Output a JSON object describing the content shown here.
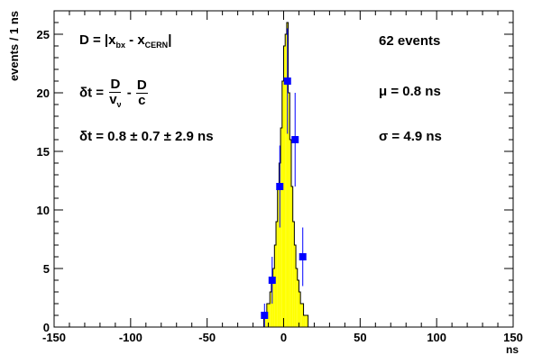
{
  "chart_data": {
    "type": "bar",
    "xlabel": "ns",
    "ylabel": "events / 1 ns",
    "xlim": [
      -150,
      150
    ],
    "ylim": [
      0,
      27
    ],
    "x_ticks": [
      -150,
      -100,
      -50,
      0,
      50,
      100,
      150
    ],
    "y_ticks": [
      0,
      5,
      10,
      15,
      20,
      25
    ],
    "grid": false,
    "legend": "none",
    "histogram": {
      "color": "#ffff00",
      "edge_color": "#000000",
      "bin_width": 1,
      "bins": [
        {
          "x": -14,
          "y": 0
        },
        {
          "x": -13,
          "y": 1
        },
        {
          "x": -12,
          "y": 1
        },
        {
          "x": -11,
          "y": 2
        },
        {
          "x": -10,
          "y": 2
        },
        {
          "x": -9,
          "y": 3
        },
        {
          "x": -8,
          "y": 4
        },
        {
          "x": -7,
          "y": 5
        },
        {
          "x": -6,
          "y": 7
        },
        {
          "x": -5,
          "y": 9
        },
        {
          "x": -4,
          "y": 12
        },
        {
          "x": -3,
          "y": 14
        },
        {
          "x": -2,
          "y": 17
        },
        {
          "x": -1,
          "y": 21
        },
        {
          "x": 0,
          "y": 24
        },
        {
          "x": 1,
          "y": 25
        },
        {
          "x": 2,
          "y": 26
        },
        {
          "x": 3,
          "y": 20
        },
        {
          "x": 4,
          "y": 16
        },
        {
          "x": 5,
          "y": 12
        },
        {
          "x": 6,
          "y": 9
        },
        {
          "x": 7,
          "y": 7
        },
        {
          "x": 8,
          "y": 5
        },
        {
          "x": 9,
          "y": 4
        },
        {
          "x": 10,
          "y": 3
        },
        {
          "x": 11,
          "y": 2
        },
        {
          "x": 12,
          "y": 2
        },
        {
          "x": 13,
          "y": 1
        },
        {
          "x": 14,
          "y": 1
        },
        {
          "x": 15,
          "y": 1
        },
        {
          "x": 16,
          "y": 0
        }
      ]
    },
    "points": {
      "color": "#0000ff",
      "x": [
        -12.5,
        -7.5,
        -2.5,
        2.5,
        7.5,
        12.5
      ],
      "y": [
        1,
        4,
        12,
        21,
        16,
        6
      ],
      "errors": [
        1,
        2,
        3.5,
        4.5,
        4,
        2.5
      ]
    }
  },
  "annotations": {
    "d_prefix": "D = |x",
    "d_sub1": "bx",
    "d_mid": " - x",
    "d_sub2": "CERN",
    "d_suffix": "|",
    "dt_def_prefix": "δt = ",
    "dt_frac1_num": "D",
    "dt_frac1_den": "v",
    "dt_frac1_den_sub": "ν",
    "dt_minus": " - ",
    "dt_frac2_num": "D",
    "dt_frac2_den": "c",
    "dt_result": "δt = 0.8 ± 0.7 ± 2.9 ns",
    "events": "62 events",
    "mu": "μ = 0.8 ns",
    "sigma": "σ = 4.9 ns"
  }
}
